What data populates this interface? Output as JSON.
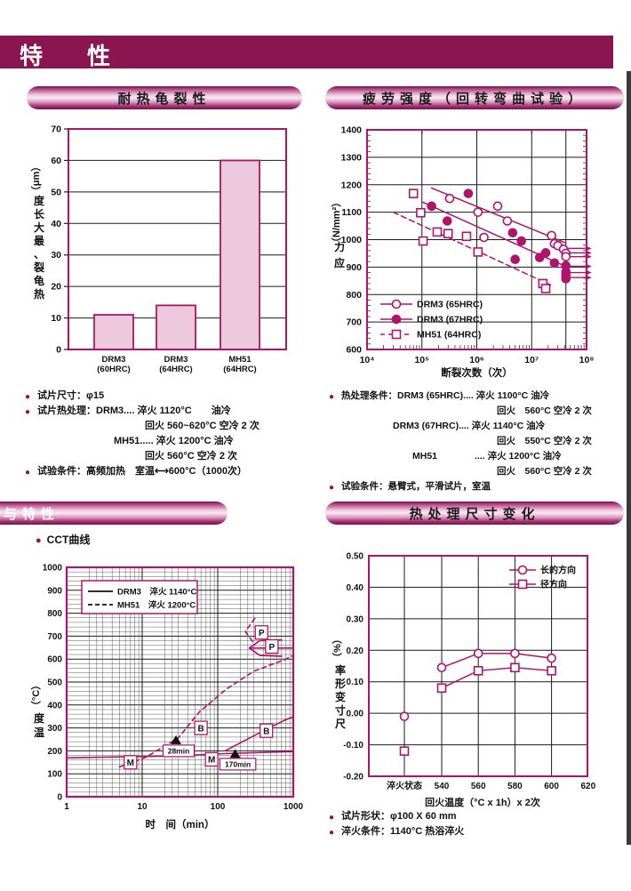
{
  "page": {
    "title": "特　性"
  },
  "sections": {
    "heat_crack": {
      "title": "耐热龟裂性"
    },
    "fatigue": {
      "title": "疲劳强度（回转弯曲试验）"
    },
    "structure": {
      "title": "与特性",
      "bullet": "CCT曲线"
    },
    "dimension": {
      "title": "热处理尺寸变化"
    }
  },
  "notes": {
    "heat_crack": [
      {
        "bullet": true,
        "indent": 0,
        "text": "试片尺寸：φ15"
      },
      {
        "bullet": true,
        "indent": 0,
        "text": "试片热处理：DRM3.... 淬火 1120°C　　油冷"
      },
      {
        "bullet": false,
        "indent": 121,
        "text": "回火 560~620°C 空冷 2 次"
      },
      {
        "bullet": false,
        "indent": 86,
        "text": "MH51..... 淬火 1200°C 油冷"
      },
      {
        "bullet": false,
        "indent": 121,
        "text": "回火 560°C 空冷 2 次"
      },
      {
        "bullet": true,
        "indent": 0,
        "text": "试验条件：高频加热　室温⟷600°C（1000次）"
      }
    ],
    "fatigue": [
      {
        "bullet": true,
        "indent": 0,
        "text": "热处理条件：DRM3 (65HRC).... 淬火 1100°C 油冷"
      },
      {
        "bullet": false,
        "indent": 175,
        "text": "回火　560°C 空冷 2 次"
      },
      {
        "bullet": false,
        "indent": 58,
        "text": "DRM3 (67HRC).... 淬火 1140°C 油冷"
      },
      {
        "bullet": false,
        "indent": 175,
        "text": "回火　550°C 空冷 2 次"
      },
      {
        "bullet": false,
        "indent": 80,
        "text": "MH51　　　　.... 淬火 1200°C 油冷"
      },
      {
        "bullet": false,
        "indent": 175,
        "text": "回火　560°C 空冷 2 次"
      },
      {
        "bullet": true,
        "indent": 0,
        "text": "试验条件：悬臂式，平滑试片，室温"
      }
    ],
    "dimension": [
      {
        "bullet": true,
        "indent": 0,
        "text": "试片形状：φ100 X 60 mm"
      },
      {
        "bullet": true,
        "indent": 0,
        "text": "淬火条件：1140°C 热浴淬火"
      }
    ]
  },
  "colors": {
    "maroon": "#8a1550",
    "magenta": "#b0136b",
    "bar_fill": "#ecc9dd",
    "grid_major": "#1a1a1a",
    "grid_minor": "#4a4a4a",
    "text": "#111111"
  },
  "chart_data": [
    {
      "type": "bar",
      "categories": [
        [
          "DRM3",
          "(60HRC)"
        ],
        [
          "DRM3",
          "(64HRC)"
        ],
        [
          "MH51",
          "(64HRC)"
        ]
      ],
      "values": [
        11,
        14,
        60
      ],
      "ylabel_chars": [
        "热",
        "龟",
        "裂",
        "、",
        "最",
        "大",
        "长",
        "度"
      ],
      "ylabel_suffix": "（μm）",
      "ylim": [
        0,
        70
      ],
      "yticks": [
        "0",
        "10",
        "20",
        "30",
        "40",
        "50",
        "60",
        "70"
      ],
      "grid": "horizontal"
    },
    {
      "type": "scatter",
      "xscale": "log",
      "xlim": [
        10000,
        100000000
      ],
      "ylim": [
        600,
        1400
      ],
      "yticks": [
        "600",
        "700",
        "800",
        "900",
        "1000",
        "1100",
        "1200",
        "1300",
        "1400"
      ],
      "xtick_labels": [
        "10⁴",
        "10⁵",
        "10⁶",
        "10⁷",
        "10⁸"
      ],
      "xlabel": "断裂次数（次）",
      "ylabel_chars": [
        "应",
        "力"
      ],
      "ylabel_suffix": "（N/mm²）",
      "runout_line_x": 42000000,
      "legend_position": "lower-left",
      "series": [
        {
          "name": "DRM3 (65HRC)",
          "marker": "circle",
          "fill": "open",
          "line": "solid",
          "points": [
            [
              320000,
              1150
            ],
            [
              1050000,
              1100
            ],
            [
              1350000,
              1008
            ],
            [
              2400000,
              1122
            ],
            [
              3600000,
              1068
            ],
            [
              23000000,
              1015
            ],
            [
              26000000,
              985
            ],
            [
              30000000,
              978
            ],
            [
              38000000,
              965
            ],
            [
              42000000,
              950
            ],
            [
              42000000,
              938
            ]
          ],
          "trend": [
            [
              150000,
              1188
            ],
            [
              42000000,
              988
            ]
          ],
          "runouts": [
            968,
            952,
            938
          ]
        },
        {
          "name": "DRM3 (67HRC)",
          "marker": "circle",
          "fill": "filled",
          "line": "solid",
          "points": [
            [
              150000,
              1122
            ],
            [
              290000,
              1068
            ],
            [
              700000,
              1168
            ],
            [
              4500000,
              1025
            ],
            [
              5000000,
              928
            ],
            [
              6500000,
              995
            ],
            [
              14000000,
              935
            ],
            [
              18000000,
              952
            ],
            [
              26000000,
              915
            ],
            [
              42000000,
              905
            ],
            [
              42000000,
              882
            ],
            [
              42000000,
              870
            ],
            [
              42000000,
              858
            ]
          ],
          "trend": [
            [
              100000,
              1138
            ],
            [
              42000000,
              902
            ]
          ],
          "runouts": [
            903,
            880,
            862
          ]
        },
        {
          "name": "MH51 (64HRC)",
          "marker": "square",
          "fill": "open",
          "line": "dashed",
          "points": [
            [
              70000,
              1168
            ],
            [
              95000,
              1098
            ],
            [
              105000,
              995
            ],
            [
              190000,
              1028
            ],
            [
              300000,
              1022
            ],
            [
              650000,
              1012
            ],
            [
              1050000,
              955
            ],
            [
              16000000,
              840
            ],
            [
              18000000,
              822
            ]
          ],
          "trend": [
            [
              30000,
              1100
            ],
            [
              22000000,
              835
            ]
          ],
          "runouts": []
        }
      ]
    },
    {
      "type": "cct",
      "xscale": "log",
      "xlim": [
        1,
        1000
      ],
      "ylim": [
        0,
        1000
      ],
      "yticks": [
        "1000",
        "900",
        "800",
        "700",
        "600",
        "500",
        "400",
        "300",
        "200",
        "100",
        "0"
      ],
      "xtick_labels": [
        "1",
        "10",
        "100",
        "1000"
      ],
      "xlabel": "时　间（min）",
      "ylabel_chars": [
        "温",
        "度"
      ],
      "ylabel_suffix": "（°C）",
      "legend": [
        {
          "label": "DRM3　淬火 1140°C",
          "line": "solid"
        },
        {
          "label": "MH51　淬火 1200°C",
          "line": "dashed"
        }
      ],
      "curves": [
        {
          "line": "solid",
          "points": [
            [
              1,
              170
            ],
            [
              30,
              178
            ],
            [
              120,
              188
            ],
            [
              1000,
              197
            ]
          ]
        },
        {
          "line": "solid",
          "points": [
            [
              125,
              200
            ],
            [
              340,
              275
            ],
            [
              760,
              333
            ],
            [
              1000,
              349
            ]
          ]
        },
        {
          "line": "solid",
          "points": [
            [
              1000,
              648
            ],
            [
              420,
              648
            ],
            [
              262,
              648
            ]
          ]
        },
        {
          "line": "solid",
          "points": [
            [
              700,
              684
            ],
            [
              360,
              680
            ],
            [
              262,
              648
            ],
            [
              360,
              616
            ],
            [
              700,
              612
            ]
          ]
        },
        {
          "line": "dashed",
          "points": [
            [
              5,
              130
            ],
            [
              11,
              171
            ],
            [
              30,
              256
            ],
            [
              58,
              372
            ],
            [
              130,
              469
            ],
            [
              300,
              547
            ],
            [
              760,
              597
            ],
            [
              1000,
              616
            ]
          ]
        },
        {
          "line": "dashed",
          "points": [
            [
              310,
              778
            ],
            [
              232,
              720
            ],
            [
              305,
              666
            ]
          ]
        }
      ],
      "phase_labels": [
        {
          "text": "M",
          "x": 7,
          "y": 150
        },
        {
          "text": "M",
          "x": 83,
          "y": 163
        },
        {
          "text": "B",
          "x": 60,
          "y": 300
        },
        {
          "text": "B",
          "x": 440,
          "y": 288
        },
        {
          "text": "P",
          "x": 380,
          "y": 716
        },
        {
          "text": "P",
          "x": 520,
          "y": 655
        }
      ],
      "time_markers": [
        {
          "text": "28min",
          "x": 28,
          "tri_temp": 268,
          "label_temp": 200
        },
        {
          "text": "170min",
          "x": 170,
          "tri_temp": 208,
          "label_temp": 142
        }
      ]
    },
    {
      "type": "line",
      "ylim": [
        -0.2,
        0.5
      ],
      "yticks": [
        "0.50",
        "0.40",
        "0.30",
        "0.20",
        "0.10",
        "0.00",
        "-0.10",
        "-0.20"
      ],
      "x_quench_label": "淬火状态",
      "x_temps": [
        "540",
        "560",
        "580",
        "600",
        "620"
      ],
      "xlabel": "回火温度（°C x 1h）x 2次",
      "ylabel_chars": [
        "尺",
        "寸",
        "变",
        "形",
        "率"
      ],
      "ylabel_suffix": "（%）",
      "legend": [
        {
          "label": "长的方向",
          "marker": "circle"
        },
        {
          "label": "径方向",
          "marker": "square"
        }
      ],
      "series": [
        {
          "name": "长的方向",
          "marker": "circle",
          "quench_value": -0.01,
          "temps": [
            540,
            560,
            580,
            600
          ],
          "values": [
            0.145,
            0.19,
            0.19,
            0.175
          ]
        },
        {
          "name": "径方向",
          "marker": "square",
          "quench_value": -0.12,
          "temps": [
            540,
            560,
            580,
            600
          ],
          "values": [
            0.08,
            0.135,
            0.145,
            0.135
          ]
        }
      ]
    }
  ]
}
